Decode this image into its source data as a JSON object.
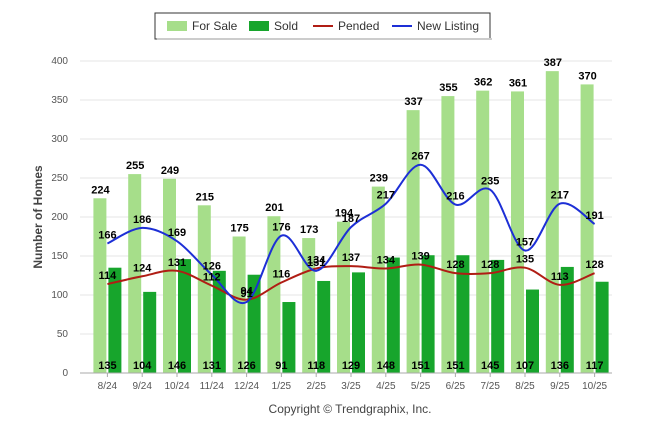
{
  "chart_data": {
    "type": "bar",
    "title": "",
    "xlabel": "",
    "ylabel": "Number of Homes",
    "ylim": [
      0,
      400
    ],
    "yticks": [
      0,
      50,
      100,
      150,
      200,
      250,
      300,
      350,
      400
    ],
    "grid": true,
    "legend_position": "top-center",
    "categories": [
      "8/24",
      "9/24",
      "10/24",
      "11/24",
      "12/24",
      "1/25",
      "2/25",
      "3/25",
      "4/25",
      "5/25",
      "6/25",
      "7/25",
      "8/25",
      "9/25",
      "10/25"
    ],
    "series": [
      {
        "name": "For Sale",
        "kind": "bar",
        "color": "#a6de8a",
        "values": [
          224,
          255,
          249,
          215,
          175,
          201,
          173,
          194,
          239,
          337,
          355,
          362,
          361,
          387,
          370
        ]
      },
      {
        "name": "Sold",
        "kind": "bar",
        "color": "#17a52c",
        "values": [
          135,
          104,
          146,
          131,
          126,
          91,
          118,
          129,
          148,
          151,
          151,
          145,
          107,
          136,
          117
        ]
      },
      {
        "name": "Pended",
        "kind": "line",
        "color": "#b01d14",
        "values": [
          114,
          124,
          131,
          112,
          94,
          116,
          134,
          137,
          134,
          139,
          128,
          128,
          135,
          113,
          128
        ]
      },
      {
        "name": "New Listing",
        "kind": "line",
        "color": "#1d2fd6",
        "values": [
          166,
          186,
          169,
          126,
          91,
          176,
          131,
          187,
          217,
          267,
          216,
          235,
          157,
          217,
          191
        ]
      }
    ]
  },
  "footer": "Copyright © Trendgraphix, Inc."
}
